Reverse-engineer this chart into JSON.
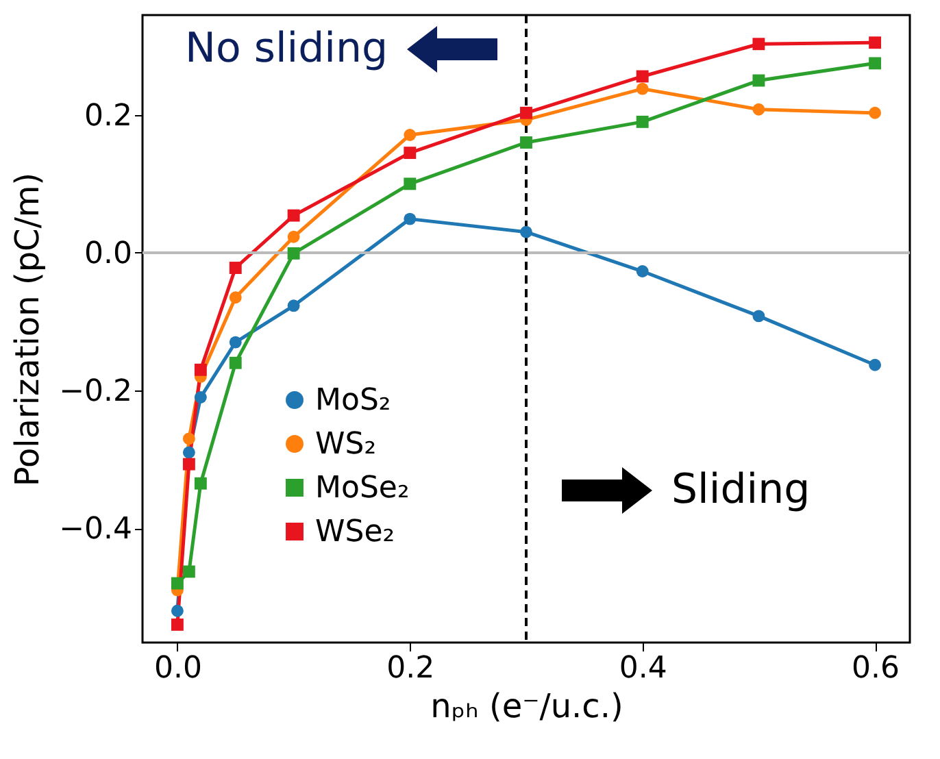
{
  "chart_data": {
    "type": "line",
    "xlabel": "nₚₕ (e⁻/u.c.)",
    "ylabel": "Polarization (pC/m)",
    "x": [
      0,
      0.01,
      0.02,
      0.05,
      0.1,
      0.2,
      0.3,
      0.4,
      0.5,
      0.6
    ],
    "series": [
      {
        "name": "MoS₂",
        "color": "#1f77b4",
        "marker": "circle",
        "values": [
          -0.52,
          -0.29,
          -0.21,
          -0.13,
          -0.077,
          0.049,
          0.03,
          -0.027,
          -0.092,
          -0.163
        ]
      },
      {
        "name": "WS₂",
        "color": "#ff7f0e",
        "marker": "circle",
        "values": [
          -0.49,
          -0.27,
          -0.18,
          -0.065,
          0.023,
          0.171,
          0.193,
          0.238,
          0.208,
          0.203
        ]
      },
      {
        "name": "MoSe₂",
        "color": "#2ca02c",
        "marker": "square",
        "values": [
          -0.48,
          -0.463,
          -0.335,
          -0.16,
          -0.001,
          0.1,
          0.16,
          0.19,
          0.25,
          0.275
        ]
      },
      {
        "name": "WSe₂",
        "color": "#e8141e",
        "marker": "square",
        "values": [
          -0.54,
          -0.307,
          -0.17,
          -0.022,
          0.054,
          0.145,
          0.203,
          0.256,
          0.303,
          0.305
        ]
      }
    ],
    "xlim": [
      -0.03,
      0.63
    ],
    "ylim": [
      -0.566,
      0.345
    ],
    "xticks": [
      {
        "value": 0,
        "label": "0.0"
      },
      0.2,
      0.4,
      0.6
    ],
    "yticks": [
      {
        "value": -0.4,
        "label": "−0.4"
      },
      {
        "value": -0.2,
        "label": "−0.2"
      },
      {
        "value": 0,
        "label": "0.0"
      },
      0.2
    ],
    "ref_lines": [
      {
        "axis": "y",
        "value": 0,
        "color": "#bbbbbb",
        "line_style": "solid"
      },
      {
        "axis": "x",
        "value": 0.3,
        "color": "#000000",
        "line_style": "dashed"
      }
    ],
    "annotations": [
      "No sliding",
      "Sliding"
    ],
    "grid": false,
    "legend": "bottom left"
  }
}
